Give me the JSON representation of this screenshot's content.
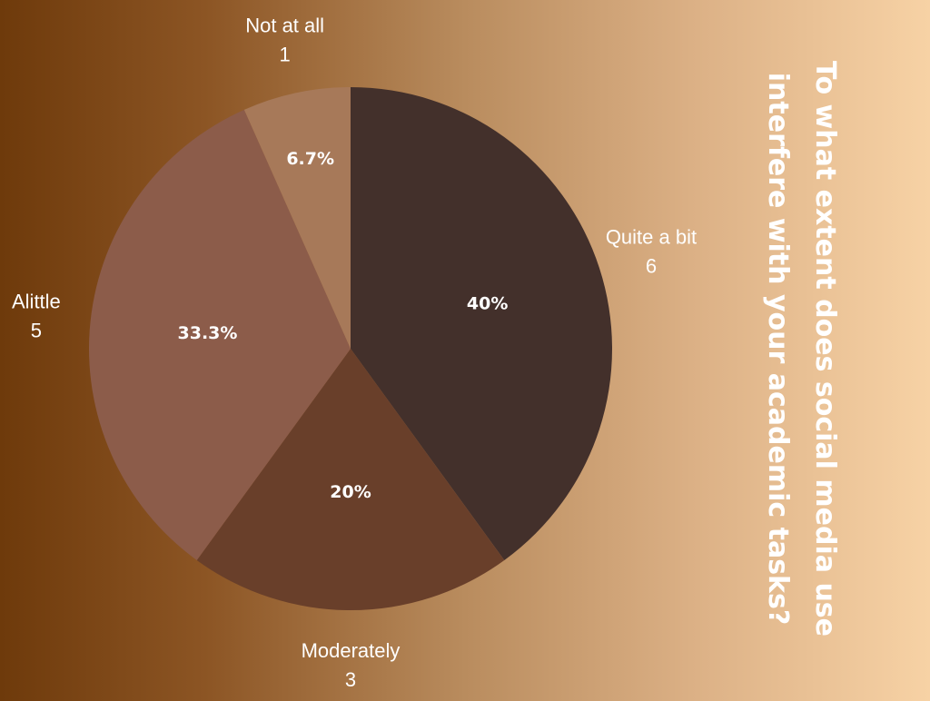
{
  "chart_data": {
    "type": "pie",
    "title": "To what extent does social media use interfere with your academic tasks?",
    "slices": [
      {
        "label": "Quite a bit",
        "value": 6,
        "percent_label": "40%",
        "color": "#43302b"
      },
      {
        "label": "Moderately",
        "value": 3,
        "percent_label": "20%",
        "color": "#693f2a"
      },
      {
        "label": "Alittle",
        "value": 5,
        "percent_label": "33.3%",
        "color": "#8c5c4a"
      },
      {
        "label": "Not at all",
        "value": 1,
        "percent_label": "6.7%",
        "color": "#a77959"
      }
    ],
    "start_angle": "12 o'clock",
    "direction": "clockwise",
    "legend": "none"
  }
}
